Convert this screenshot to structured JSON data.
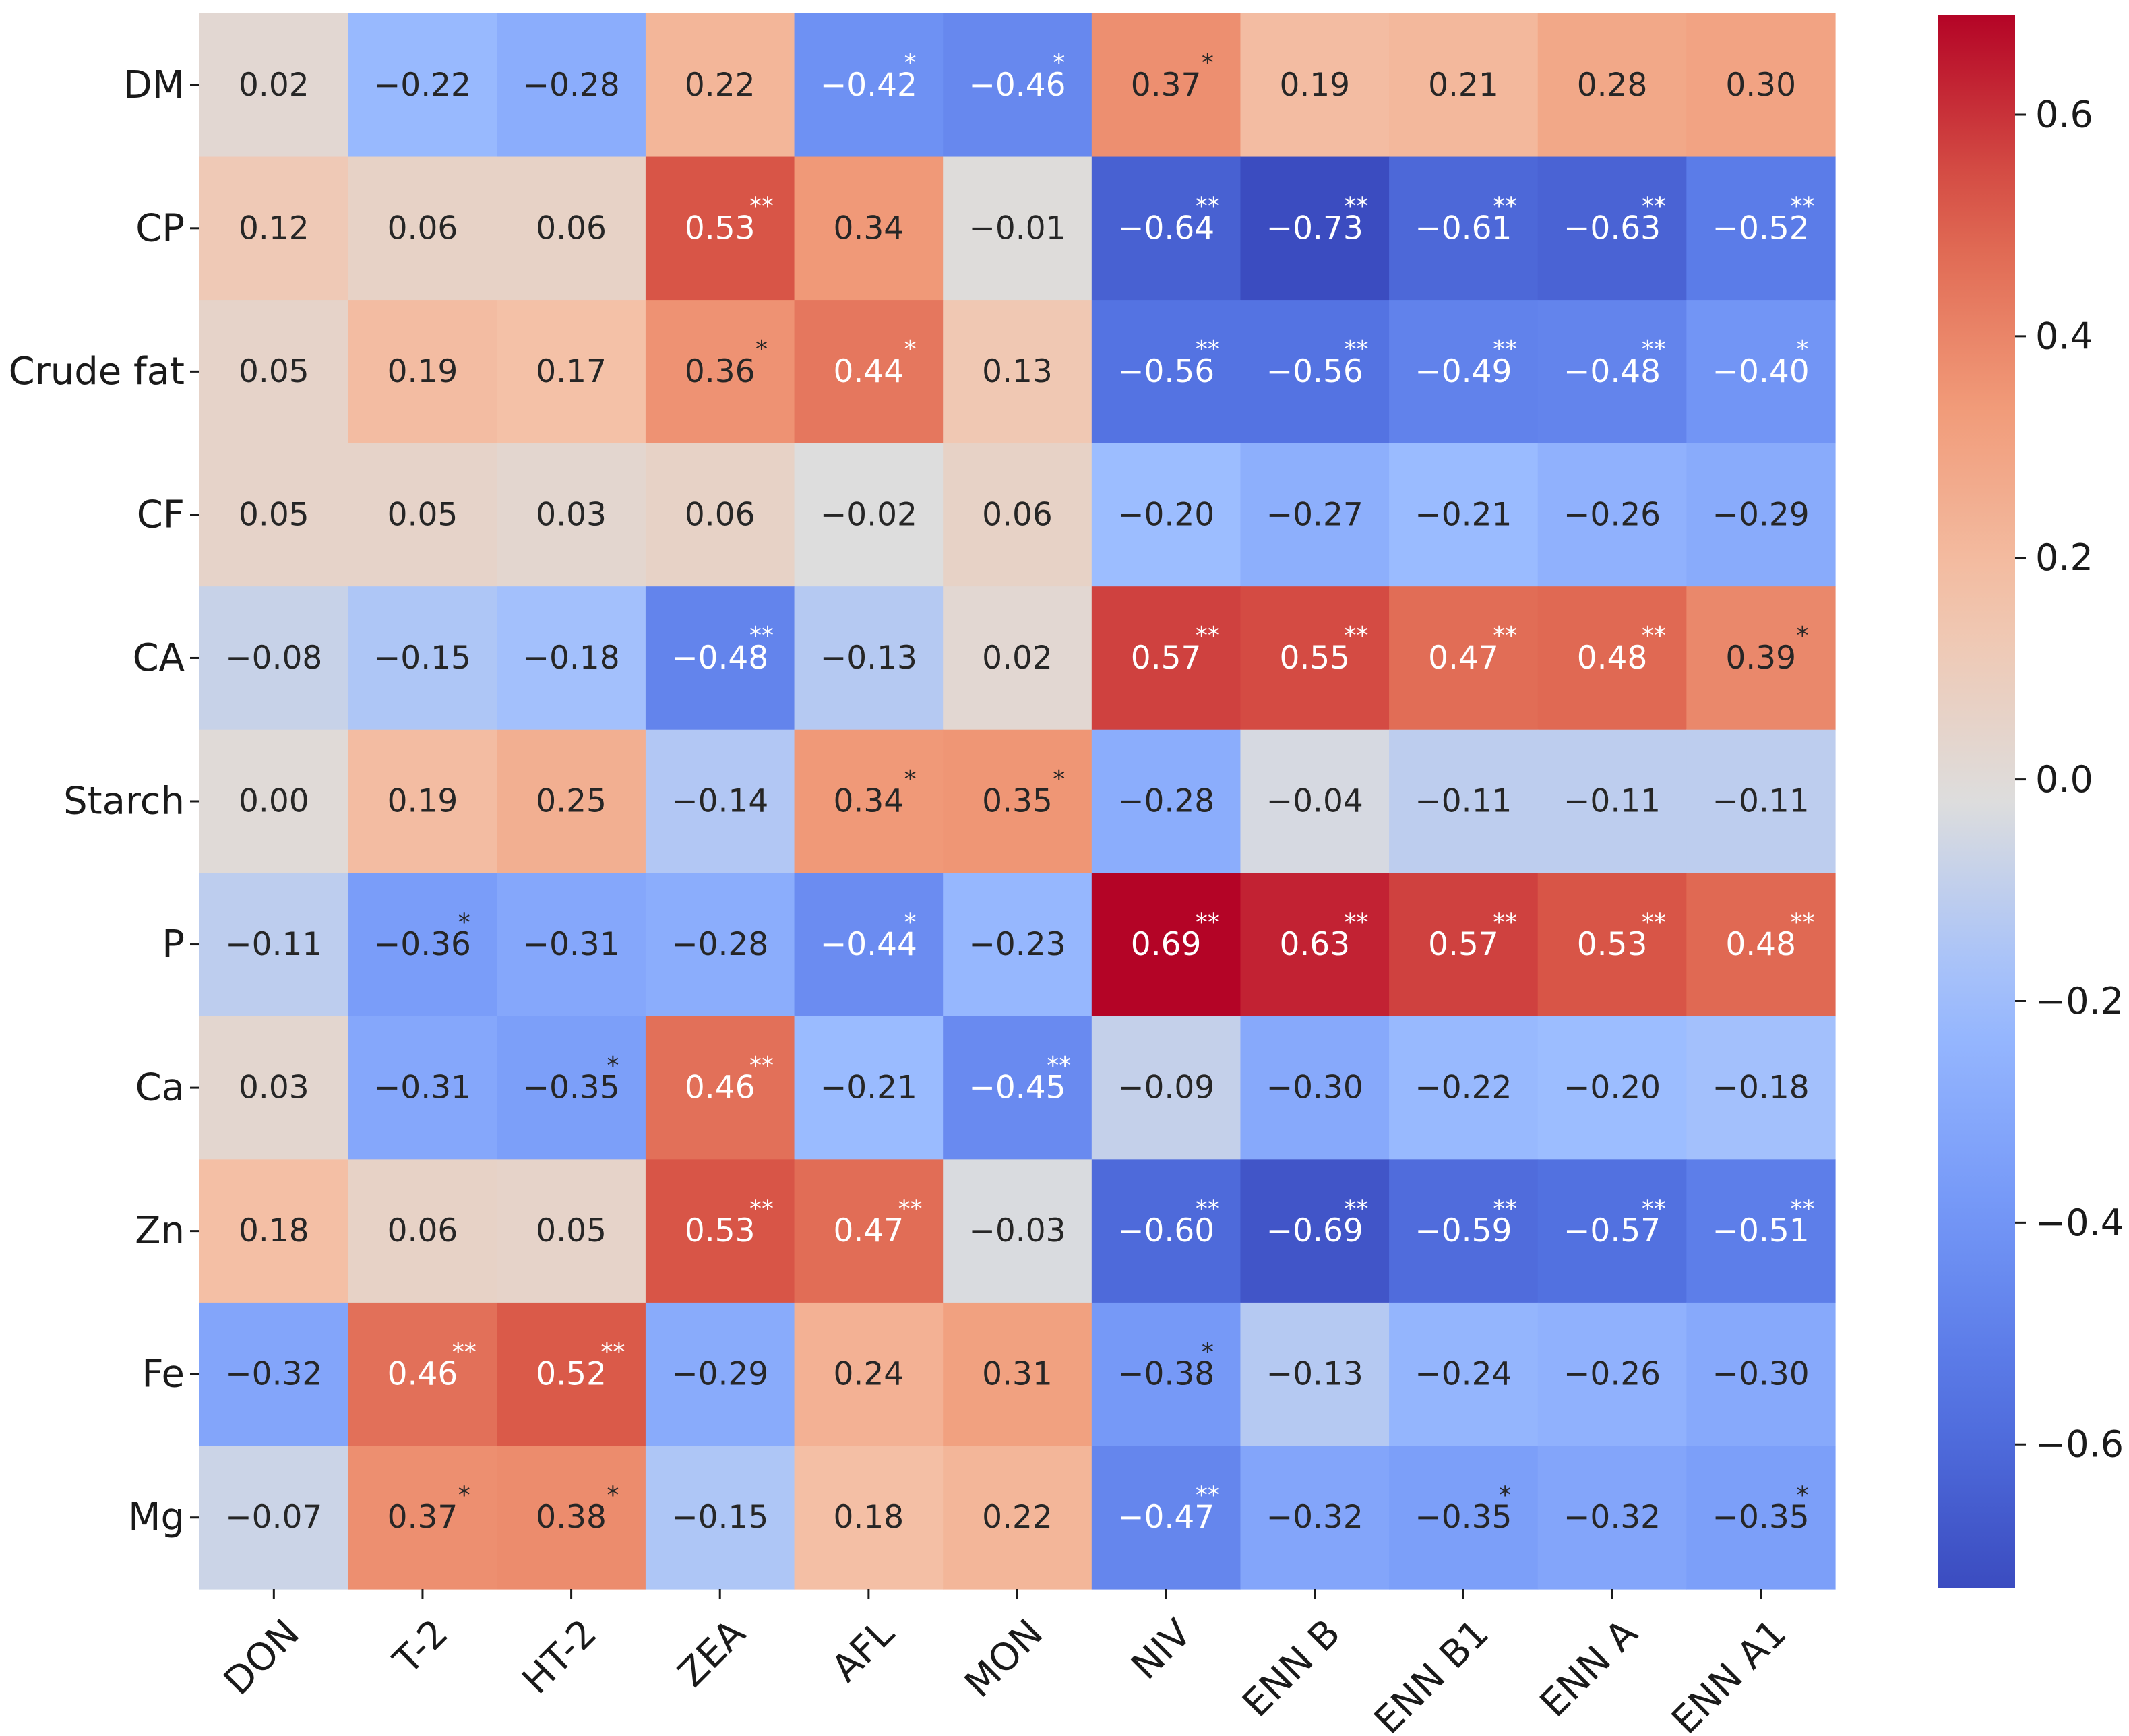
{
  "chart_data": {
    "type": "heatmap",
    "title": "",
    "xlabel": "",
    "ylabel": "",
    "rows": [
      "DM",
      "CP",
      "Crude fat",
      "CF",
      "CA",
      "Starch",
      "P",
      "Ca",
      "Zn",
      "Fe",
      "Mg"
    ],
    "columns": [
      "DON",
      "T-2",
      "HT-2",
      "ZEA",
      "AFL",
      "MON",
      "NIV",
      "ENN B",
      "ENN B1",
      "ENN A",
      "ENN A1"
    ],
    "values": [
      [
        0.02,
        -0.22,
        -0.28,
        0.22,
        -0.42,
        -0.46,
        0.37,
        0.19,
        0.21,
        0.28,
        0.3
      ],
      [
        0.12,
        0.06,
        0.06,
        0.53,
        0.34,
        -0.01,
        -0.64,
        -0.73,
        -0.61,
        -0.63,
        -0.52
      ],
      [
        0.05,
        0.19,
        0.17,
        0.36,
        0.44,
        0.13,
        -0.56,
        -0.56,
        -0.49,
        -0.48,
        -0.4
      ],
      [
        0.05,
        0.05,
        0.03,
        0.06,
        -0.02,
        0.06,
        -0.2,
        -0.27,
        -0.21,
        -0.26,
        -0.29
      ],
      [
        -0.08,
        -0.15,
        -0.18,
        -0.48,
        -0.13,
        0.02,
        0.57,
        0.55,
        0.47,
        0.48,
        0.39
      ],
      [
        0.0,
        0.19,
        0.25,
        -0.14,
        0.34,
        0.35,
        -0.28,
        -0.04,
        -0.11,
        -0.11,
        -0.11
      ],
      [
        -0.11,
        -0.36,
        -0.31,
        -0.28,
        -0.44,
        -0.23,
        0.69,
        0.63,
        0.57,
        0.53,
        0.48
      ],
      [
        0.03,
        -0.31,
        -0.35,
        0.46,
        -0.21,
        -0.45,
        -0.09,
        -0.3,
        -0.22,
        -0.2,
        -0.18
      ],
      [
        0.18,
        0.06,
        0.05,
        0.53,
        0.47,
        -0.03,
        -0.6,
        -0.69,
        -0.59,
        -0.57,
        -0.51
      ],
      [
        -0.32,
        0.46,
        0.52,
        -0.29,
        0.24,
        0.31,
        -0.38,
        -0.13,
        -0.24,
        -0.26,
        -0.3
      ],
      [
        -0.07,
        0.37,
        0.38,
        -0.15,
        0.18,
        0.22,
        -0.47,
        -0.32,
        -0.35,
        -0.32,
        -0.35
      ]
    ],
    "significance": [
      [
        "",
        "",
        "",
        "",
        "*",
        "*",
        "*",
        "",
        "",
        "",
        ""
      ],
      [
        "",
        "",
        "",
        "**",
        "",
        "",
        "**",
        "**",
        "**",
        "**",
        "**"
      ],
      [
        "",
        "",
        "",
        "*",
        "*",
        "",
        "**",
        "**",
        "**",
        "**",
        "*"
      ],
      [
        "",
        "",
        "",
        "",
        "",
        "",
        "",
        "",
        "",
        "",
        ""
      ],
      [
        "",
        "",
        "",
        "**",
        "",
        "",
        "**",
        "**",
        "**",
        "**",
        "*"
      ],
      [
        "",
        "",
        "",
        "",
        "*",
        "*",
        "",
        "",
        "",
        "",
        ""
      ],
      [
        "",
        "*",
        "",
        "",
        "*",
        "",
        "**",
        "**",
        "**",
        "**",
        "**"
      ],
      [
        "",
        "",
        "*",
        "**",
        "",
        "**",
        "",
        "",
        "",
        "",
        ""
      ],
      [
        "",
        "",
        "",
        "**",
        "**",
        "",
        "**",
        "**",
        "**",
        "**",
        "**"
      ],
      [
        "",
        "**",
        "**",
        "",
        "",
        "",
        "*",
        "",
        "",
        "",
        ""
      ],
      [
        "",
        "*",
        "*",
        "",
        "",
        "",
        "**",
        "",
        "*",
        "",
        "*"
      ]
    ],
    "colormap": "coolwarm",
    "vmin": -0.73,
    "vmax": 0.69,
    "colorbar": {
      "ticks": [
        -0.6,
        -0.4,
        -0.2,
        0.0,
        0.2,
        0.4,
        0.6
      ],
      "tick_labels": [
        "−0.6",
        "−0.4",
        "−0.2",
        "0.0",
        "0.2",
        "0.4",
        "0.6"
      ],
      "placement": "right"
    }
  }
}
